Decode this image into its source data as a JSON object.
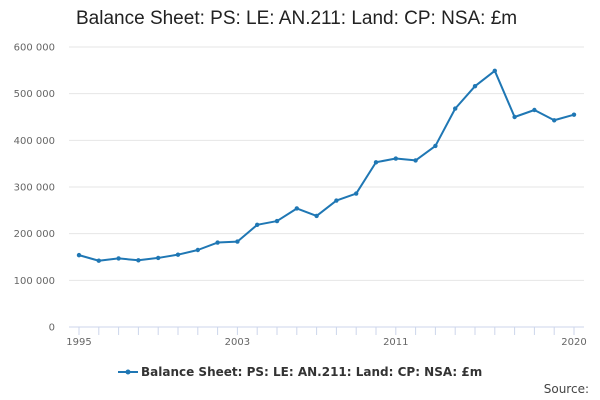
{
  "chart_data": {
    "type": "line",
    "title": "Balance Sheet: PS: LE: AN.211: Land: CP: NSA: £m",
    "xlabel": "",
    "ylabel": "",
    "ylim": [
      0,
      600000
    ],
    "xlim": [
      1995,
      2020
    ],
    "yticks": [
      0,
      100000,
      200000,
      300000,
      400000,
      500000,
      600000
    ],
    "ytick_labels": [
      "0",
      "100 000",
      "200 000",
      "300 000",
      "400 000",
      "500 000",
      "600 000"
    ],
    "xtick_labels": [
      "1995",
      "2003",
      "2011",
      "2020"
    ],
    "grid": true,
    "legend_position": "bottom",
    "x": [
      1995,
      1996,
      1997,
      1998,
      1999,
      2000,
      2001,
      2002,
      2003,
      2004,
      2005,
      2006,
      2007,
      2008,
      2009,
      2010,
      2011,
      2012,
      2013,
      2014,
      2015,
      2016,
      2017,
      2018,
      2019,
      2020
    ],
    "series": [
      {
        "name": "Balance Sheet: PS: LE: AN.211: Land: CP: NSA: £m",
        "color": "#1f77b4",
        "values": [
          154000,
          142000,
          147000,
          143000,
          148000,
          155000,
          165000,
          181000,
          183000,
          219000,
          227000,
          254000,
          238000,
          271000,
          286000,
          353000,
          361000,
          357000,
          388000,
          468000,
          516000,
          549000,
          450000,
          465000,
          443000,
          455000
        ]
      }
    ]
  },
  "source": "Source:"
}
